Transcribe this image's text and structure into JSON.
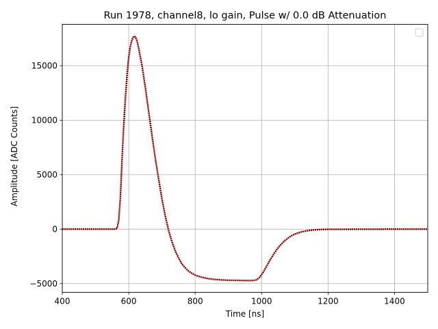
{
  "chart_data": {
    "type": "scatter",
    "title": "Run 1978, channel8, lo gain, Pulse w/ 0.0 dB Attenuation",
    "xlabel": "Time [ns]",
    "ylabel": "Amplitude [ADC Counts]",
    "xlim": [
      400,
      1500
    ],
    "ylim": [
      -5800,
      18800
    ],
    "xticks": [
      400,
      600,
      800,
      1000,
      1200,
      1400
    ],
    "yticks": [
      -5000,
      0,
      5000,
      10000,
      15000
    ],
    "ytick_labels": [
      "−5000",
      "0",
      "5000",
      "10000",
      "15000"
    ],
    "grid": true,
    "legend": "top-right, empty",
    "series": [
      {
        "color": "#8b0000",
        "points": [
          [
            400,
            0
          ],
          [
            560,
            0
          ],
          [
            565,
            80
          ],
          [
            570,
            800
          ],
          [
            575,
            3000
          ],
          [
            580,
            6500
          ],
          [
            585,
            9500
          ],
          [
            590,
            12000
          ],
          [
            595,
            14200
          ],
          [
            600,
            15800
          ],
          [
            605,
            16800
          ],
          [
            610,
            17400
          ],
          [
            615,
            17700
          ],
          [
            620,
            17650
          ],
          [
            625,
            17300
          ],
          [
            630,
            16600
          ],
          [
            640,
            15000
          ],
          [
            650,
            13000
          ],
          [
            660,
            10800
          ],
          [
            670,
            8600
          ],
          [
            680,
            6500
          ],
          [
            690,
            4600
          ],
          [
            700,
            2800
          ],
          [
            710,
            1200
          ],
          [
            720,
            -100
          ],
          [
            730,
            -1150
          ],
          [
            740,
            -2000
          ],
          [
            750,
            -2650
          ],
          [
            760,
            -3200
          ],
          [
            770,
            -3550
          ],
          [
            780,
            -3850
          ],
          [
            790,
            -4050
          ],
          [
            800,
            -4220
          ],
          [
            820,
            -4420
          ],
          [
            840,
            -4550
          ],
          [
            860,
            -4620
          ],
          [
            880,
            -4660
          ],
          [
            900,
            -4690
          ],
          [
            920,
            -4700
          ],
          [
            940,
            -4710
          ],
          [
            960,
            -4720
          ],
          [
            975,
            -4720
          ],
          [
            985,
            -4650
          ],
          [
            995,
            -4400
          ],
          [
            1005,
            -3950
          ],
          [
            1015,
            -3400
          ],
          [
            1025,
            -2850
          ],
          [
            1035,
            -2350
          ],
          [
            1045,
            -1900
          ],
          [
            1055,
            -1500
          ],
          [
            1070,
            -1050
          ],
          [
            1085,
            -700
          ],
          [
            1100,
            -450
          ],
          [
            1120,
            -250
          ],
          [
            1140,
            -130
          ],
          [
            1160,
            -60
          ],
          [
            1180,
            -30
          ],
          [
            1200,
            -20
          ],
          [
            1260,
            -10
          ],
          [
            1350,
            -5
          ],
          [
            1400,
            0
          ],
          [
            1500,
            0
          ]
        ]
      }
    ]
  }
}
